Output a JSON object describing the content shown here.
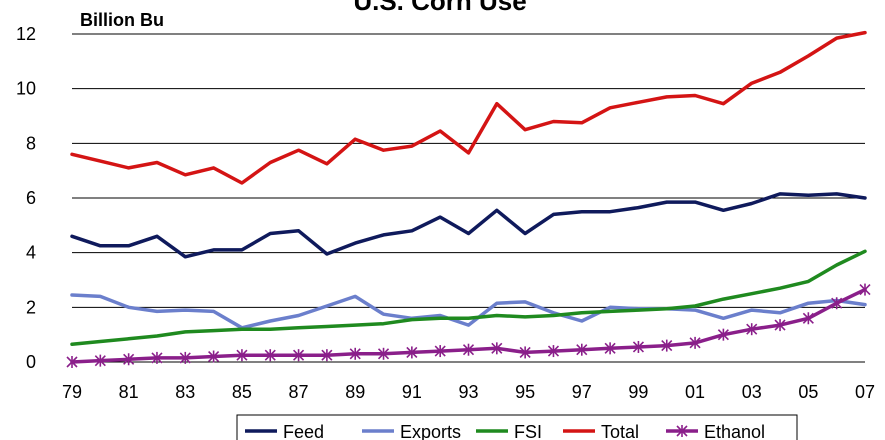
{
  "chart_data": {
    "type": "line",
    "title": "U.S. Corn Use",
    "unit_label": "Billion Bu",
    "xlabel": "",
    "ylabel": "",
    "ylim": [
      0,
      12
    ],
    "y_ticks": [
      "0",
      "2",
      "4",
      "6",
      "8",
      "10",
      "12"
    ],
    "grid": "horizontal",
    "legend_position": "bottom",
    "x": [
      "79",
      "80",
      "81",
      "82",
      "83",
      "84",
      "85",
      "86",
      "87",
      "88",
      "89",
      "90",
      "91",
      "92",
      "93",
      "94",
      "95",
      "96",
      "97",
      "98",
      "99",
      "00",
      "01",
      "02",
      "03",
      "04",
      "05",
      "06",
      "07"
    ],
    "x_tick_labels": [
      "79",
      "81",
      "83",
      "85",
      "87",
      "89",
      "91",
      "93",
      "95",
      "97",
      "99",
      "01",
      "03",
      "05",
      "07"
    ],
    "series": [
      {
        "name": "Feed",
        "color": "#0f1a5c",
        "marker": "none",
        "values": [
          4.6,
          4.25,
          4.25,
          4.6,
          3.85,
          4.1,
          4.1,
          4.7,
          4.8,
          3.95,
          4.35,
          4.65,
          4.8,
          5.3,
          4.7,
          5.55,
          4.7,
          5.4,
          5.5,
          5.5,
          5.65,
          5.85,
          5.85,
          5.55,
          5.8,
          6.15,
          6.1,
          6.15,
          6.0
        ]
      },
      {
        "name": "Exports",
        "color": "#6b7fcc",
        "marker": "none",
        "values": [
          2.45,
          2.4,
          2.0,
          1.85,
          1.9,
          1.85,
          1.25,
          1.5,
          1.7,
          2.05,
          2.4,
          1.75,
          1.6,
          1.7,
          1.35,
          2.15,
          2.2,
          1.8,
          1.5,
          2.0,
          1.95,
          1.95,
          1.9,
          1.6,
          1.9,
          1.8,
          2.15,
          2.25,
          2.1
        ]
      },
      {
        "name": "FSI",
        "color": "#1f8a1f",
        "marker": "none",
        "values": [
          0.65,
          0.75,
          0.85,
          0.95,
          1.1,
          1.15,
          1.2,
          1.2,
          1.25,
          1.3,
          1.35,
          1.4,
          1.55,
          1.6,
          1.6,
          1.7,
          1.65,
          1.7,
          1.8,
          1.85,
          1.9,
          1.95,
          2.05,
          2.3,
          2.5,
          2.7,
          2.95,
          3.55,
          4.05
        ]
      },
      {
        "name": "Total",
        "color": "#d41414",
        "marker": "none",
        "values": [
          7.6,
          7.35,
          7.1,
          7.3,
          6.85,
          7.1,
          6.55,
          7.3,
          7.75,
          7.25,
          8.15,
          7.75,
          7.9,
          8.45,
          7.65,
          9.45,
          8.5,
          8.8,
          8.75,
          9.3,
          9.5,
          9.7,
          9.75,
          9.45,
          10.2,
          10.6,
          11.2,
          11.85,
          12.05
        ]
      },
      {
        "name": "Ethanol",
        "color": "#8a1f8a",
        "marker": "asterisk",
        "values": [
          0.0,
          0.05,
          0.1,
          0.15,
          0.15,
          0.2,
          0.25,
          0.25,
          0.25,
          0.25,
          0.3,
          0.3,
          0.35,
          0.4,
          0.45,
          0.5,
          0.35,
          0.4,
          0.45,
          0.5,
          0.55,
          0.6,
          0.7,
          1.0,
          1.2,
          1.35,
          1.6,
          2.15,
          2.65
        ]
      }
    ]
  }
}
